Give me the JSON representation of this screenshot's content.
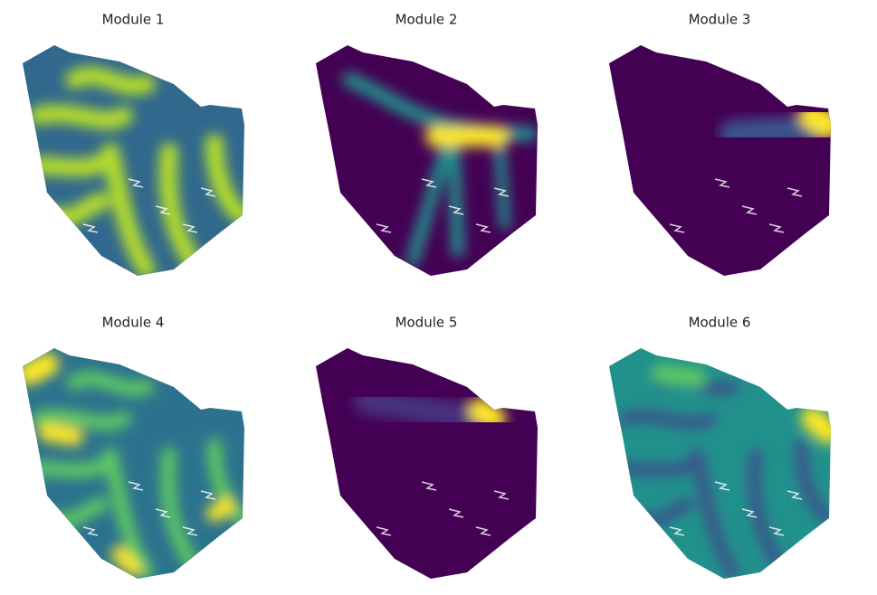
{
  "panels": [
    {
      "title": "Module 1"
    },
    {
      "title": "Module 2"
    },
    {
      "title": "Module 3"
    },
    {
      "title": "Module 4"
    },
    {
      "title": "Module 5"
    },
    {
      "title": "Module 6"
    }
  ]
}
